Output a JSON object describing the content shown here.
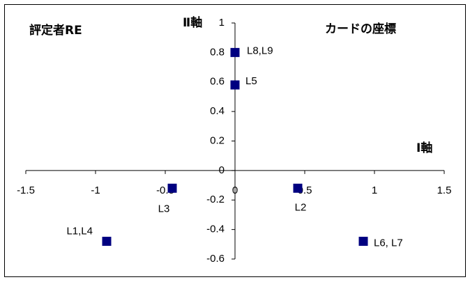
{
  "chart_data": {
    "type": "scatter",
    "title": "評定者RE",
    "subtitle": "カードの座標",
    "x_label": "Ⅰ軸",
    "y_label": "Ⅱ軸",
    "series": [
      {
        "color": "#000080",
        "x": [
          0,
          0,
          -0.45,
          0.45,
          -0.92,
          0.92
        ],
        "values": [
          0.8,
          0.58,
          -0.12,
          -0.12,
          -0.48,
          -0.48
        ],
        "point_labels": [
          "L8,L9",
          "L5",
          "L3",
          "L2",
          "L1,L4",
          "L6, L7"
        ]
      }
    ],
    "xlim": [
      -1.5,
      1.5
    ],
    "xticks": [
      -1.5,
      -1,
      -0.5,
      0,
      0.5,
      1,
      1.5
    ],
    "ylim": [
      -0.6,
      1
    ],
    "yticks": [
      -0.6,
      -0.4,
      -0.2,
      0,
      0.2,
      0.4,
      0.6,
      0.8,
      1
    ]
  }
}
